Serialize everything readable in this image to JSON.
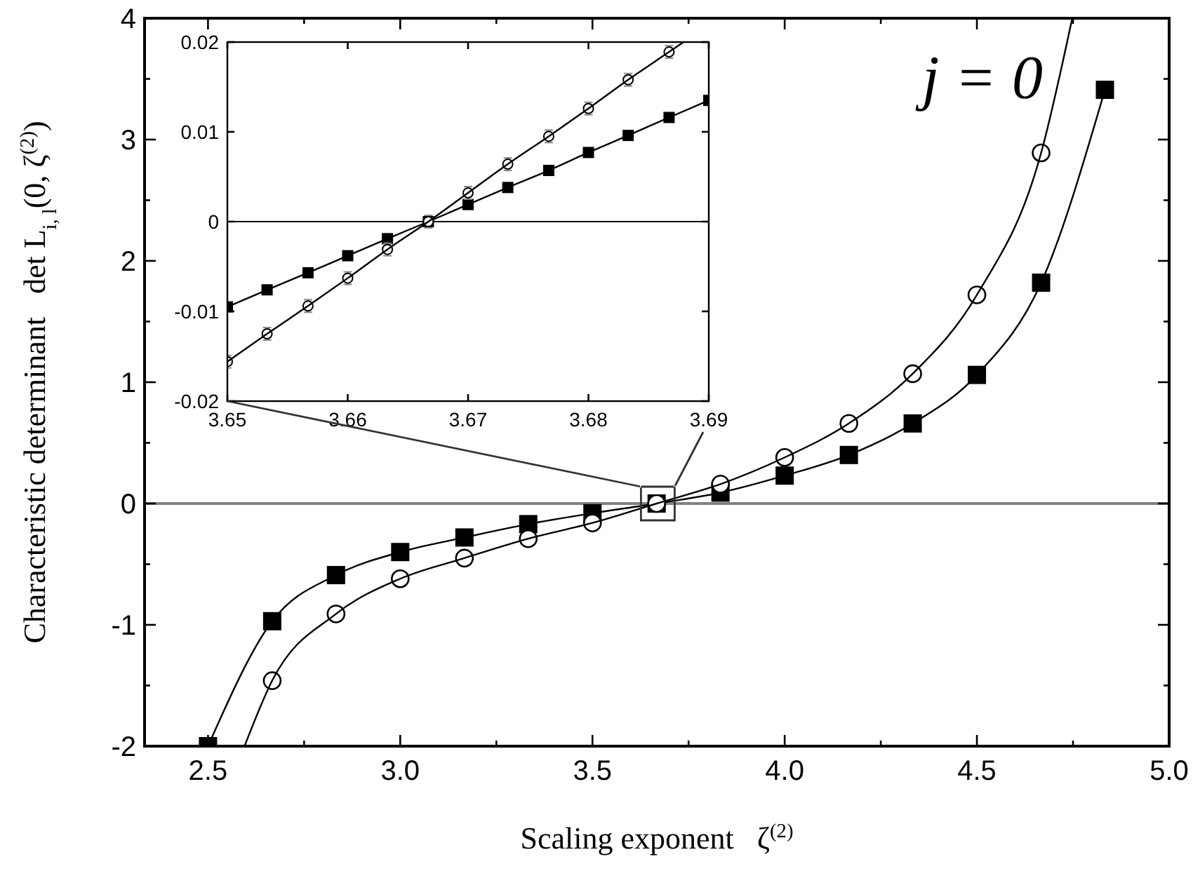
{
  "chart_data": [
    {
      "type": "line",
      "xlabel": "Scaling exponent   ζ$^{(2)}$",
      "ylabel": "Characteristic determinant   det L$_{i, l}$(0, ζ$^{(2)}$)",
      "annotations": [
        "j = 0"
      ],
      "xlim": [
        2.335,
        5.0
      ],
      "xticks": [
        {
          "value": 2.5,
          "label": "2.5"
        },
        {
          "value": 2.75,
          "label": null
        },
        {
          "value": 3,
          "label": "3.0"
        },
        {
          "value": 3.25,
          "label": null
        },
        {
          "value": 3.5,
          "label": "3.5"
        },
        {
          "value": 3.75,
          "label": null
        },
        {
          "value": 4,
          "label": "4.0"
        },
        {
          "value": 4.25,
          "label": null
        },
        {
          "value": 4.5,
          "label": "4.5"
        },
        {
          "value": 4.75,
          "label": null
        },
        {
          "value": 5,
          "label": "5.0"
        }
      ],
      "ylim": [
        -2,
        4
      ],
      "yticks": [
        -2,
        {
          "value": -1.5,
          "label": null
        },
        -1,
        {
          "value": -0.5,
          "label": null
        },
        0,
        {
          "value": 0.5,
          "label": null
        },
        1,
        {
          "value": 1.5,
          "label": null
        },
        2,
        {
          "value": 2.5,
          "label": null
        },
        3,
        {
          "value": 3.5,
          "label": null
        },
        4
      ],
      "ref_lines": [
        {
          "axis": "y",
          "value": 0,
          "color": "#808080"
        }
      ],
      "series": [
        {
          "type": "line",
          "marker": "square",
          "color": "#000000",
          "x": [
            2.5,
            2.667,
            2.833,
            3.0,
            3.167,
            3.333,
            3.5,
            3.667,
            3.833,
            4.0,
            4.167,
            4.333,
            4.5,
            4.667,
            4.833
          ],
          "values": [
            -2,
            -0.97,
            -0.59,
            -0.4,
            -0.28,
            -0.17,
            -0.08,
            0,
            0.09,
            0.23,
            0.4,
            0.66,
            1.06,
            1.82,
            3.41
          ]
        },
        {
          "type": "scatter",
          "marker": "circle",
          "color": "#000000",
          "x": [
            2.667,
            2.833,
            3.0,
            3.167,
            3.333,
            3.5,
            3.667,
            3.833,
            4.0,
            4.167,
            4.333,
            4.5,
            4.667
          ],
          "values": [
            -1.46,
            -0.91,
            -0.62,
            -0.45,
            -0.29,
            -0.16,
            0,
            0.16,
            0.38,
            0.66,
            1.07,
            1.72,
            2.89
          ]
        },
        {
          "type": "line",
          "marker": "none",
          "color": "#000000",
          "x": [
            2.595,
            2.667,
            2.833,
            3.0,
            3.167,
            3.333,
            3.5,
            3.667,
            3.833,
            4.0,
            4.167,
            4.333,
            4.5,
            4.667,
            4.748
          ],
          "values": [
            -2,
            -1.46,
            -0.91,
            -0.62,
            -0.45,
            -0.29,
            -0.16,
            0,
            0.16,
            0.38,
            0.66,
            1.07,
            1.72,
            2.89,
            4
          ]
        }
      ]
    },
    {
      "type": "line",
      "xlim": [
        3.65,
        3.69
      ],
      "xticks": [
        3.65,
        3.66,
        3.67,
        3.68,
        3.69
      ],
      "ylim": [
        -0.02,
        0.02
      ],
      "yticks": [
        -0.02,
        -0.01,
        0,
        0.01,
        0.02
      ],
      "ref_lines": [
        {
          "axis": "y",
          "value": 0,
          "color": "#000000"
        }
      ],
      "series": [
        {
          "type": "line",
          "marker": "square",
          "color": "#000000",
          "x": [
            3.65,
            3.6533,
            3.6567,
            3.66,
            3.6633,
            3.6667,
            3.67,
            3.6733,
            3.6767,
            3.68,
            3.6833,
            3.6867,
            3.69
          ],
          "values": [
            -0.0095,
            -0.0076,
            -0.0057,
            -0.0038,
            -0.0019,
            0,
            0.0019,
            0.0038,
            0.0057,
            0.0077,
            0.0096,
            0.0116,
            0.0135
          ]
        },
        {
          "type": "scatter",
          "marker": "circle",
          "color": "#000000",
          "x": [
            3.65,
            3.6533,
            3.6567,
            3.66,
            3.6633,
            3.6667,
            3.67,
            3.6733,
            3.6767,
            3.68,
            3.6833,
            3.6867
          ],
          "values": [
            -0.0156,
            -0.0125,
            -0.0094,
            -0.0063,
            -0.0031,
            0,
            0.0032,
            0.0064,
            0.0095,
            0.0126,
            0.0158,
            0.0189
          ],
          "errors": [
            0.0007,
            0.0007,
            0.0007,
            0.0007,
            0.0007,
            0.0007,
            0.0007,
            0.0007,
            0.0007,
            0.0007,
            0.0007,
            0.0007
          ]
        },
        {
          "type": "line",
          "marker": "none",
          "color": "#000000",
          "x": [
            3.65,
            3.6533,
            3.6567,
            3.66,
            3.6633,
            3.6667,
            3.67,
            3.6733,
            3.6767,
            3.68,
            3.6833,
            3.6867,
            3.6879
          ],
          "values": [
            -0.0156,
            -0.0125,
            -0.0094,
            -0.0063,
            -0.0031,
            0,
            0.0032,
            0.0064,
            0.0095,
            0.0126,
            0.0158,
            0.0189,
            0.02
          ]
        }
      ]
    }
  ]
}
